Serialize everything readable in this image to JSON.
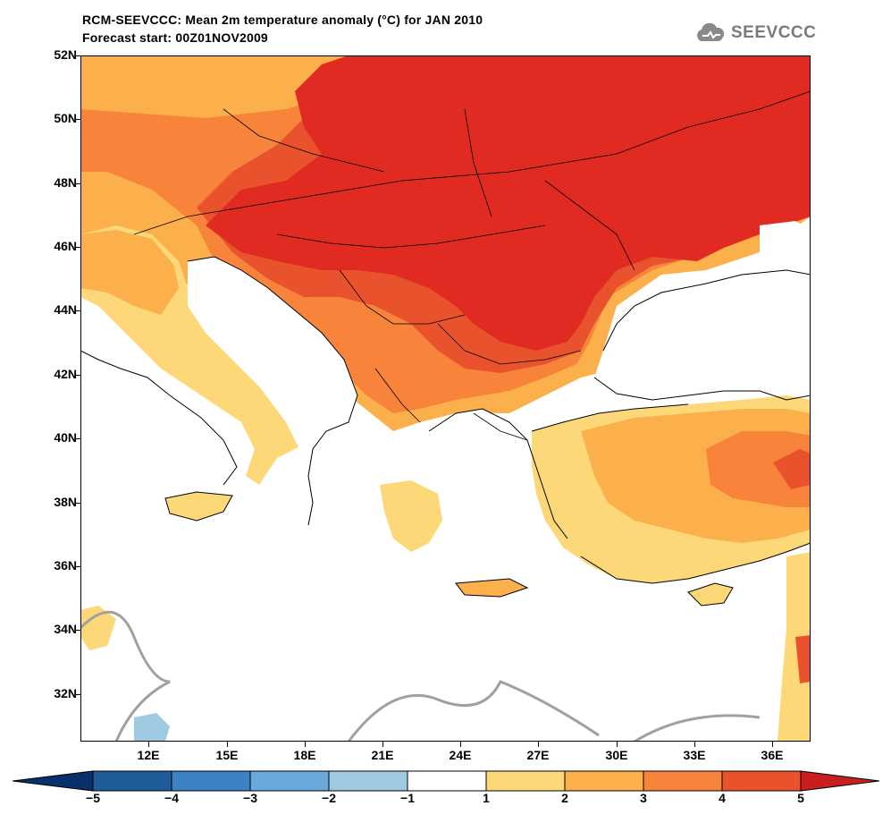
{
  "title": {
    "line1": "RCM-SEEVCCC: Mean 2m temperature anomaly (°C) for JAN 2010",
    "line2": "Forecast start: 00Z01NOV2009"
  },
  "logo": {
    "text": "SEEVCCC",
    "icon": "cloud-icon"
  },
  "map": {
    "projection": "lat-lon",
    "lon_range": [
      9.0,
      37.5
    ],
    "lat_range": [
      30.5,
      52.0
    ],
    "lat_labels": [
      "52N",
      "50N",
      "48N",
      "46N",
      "44N",
      "42N",
      "40N",
      "38N",
      "36N",
      "34N",
      "32N"
    ],
    "lon_labels": [
      "12E",
      "15E",
      "18E",
      "21E",
      "24E",
      "27E",
      "30E",
      "33E",
      "36E"
    ]
  },
  "colorbar": {
    "labels": [
      "−5",
      "−4",
      "−3",
      "−2",
      "−1",
      "1",
      "2",
      "3",
      "4",
      "5"
    ],
    "colors": [
      "#1f5c9a",
      "#3d82c4",
      "#6aa9dc",
      "#9ecae1",
      "#ffffff",
      "#fdd878",
      "#fbb04b",
      "#f7843a",
      "#e8532e"
    ],
    "end_low_color": "#08306b",
    "end_high_color": "#c81e1e"
  },
  "legend_colors": {
    "c1_2": "#fdd878",
    "c2_3": "#fbb04b",
    "c3_4": "#f7843a",
    "c4_5": "#e8532e",
    "c5p": "#e02a22",
    "neg": "#9ecae1",
    "zero_contour": "#a0a0a0",
    "coast": "#000000"
  }
}
